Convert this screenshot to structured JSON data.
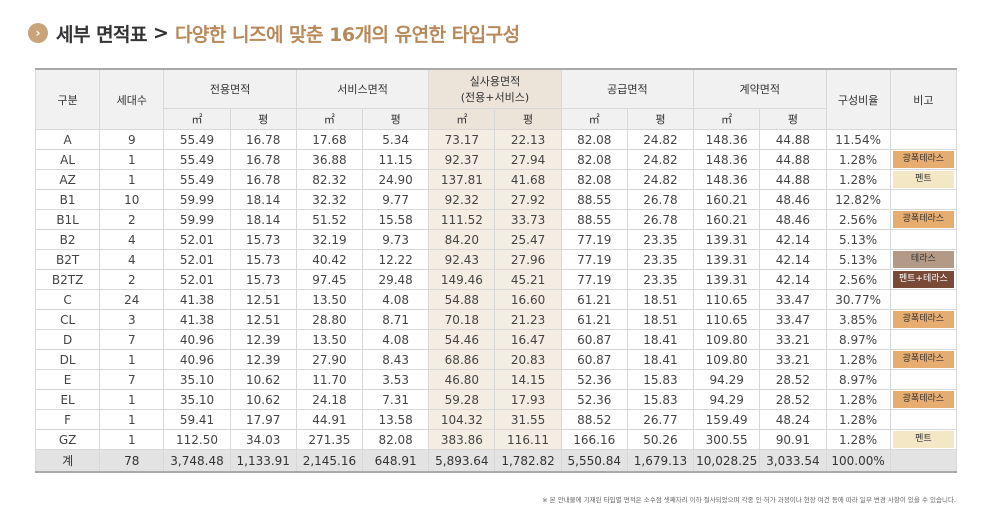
{
  "header": {
    "bullet": "›",
    "title_main": "세부 면적표",
    "separator": ">",
    "title_sub": "다양한 니즈에 맞춘 16개의 유연한 타입구성"
  },
  "table": {
    "headers": {
      "type": "구분",
      "units": "세대수",
      "exclusive": "전용면적",
      "service": "서비스면적",
      "actual_line1": "실사용면적",
      "actual_line2": "(전용+서비스)",
      "supply": "공급면적",
      "contract": "계약면적",
      "ratio": "구성비율",
      "note": "비고",
      "unit_sqm": "㎡",
      "unit_pyeong": "평"
    },
    "rows": [
      {
        "type": "A",
        "units": "9",
        "ex_m": "55.49",
        "ex_p": "16.78",
        "sv_m": "17.68",
        "sv_p": "5.34",
        "ac_m": "73.17",
        "ac_p": "22.13",
        "su_m": "82.08",
        "su_p": "24.82",
        "ct_m": "148.36",
        "ct_p": "44.88",
        "ratio": "11.54%",
        "note": ""
      },
      {
        "type": "AL",
        "units": "1",
        "ex_m": "55.49",
        "ex_p": "16.78",
        "sv_m": "36.88",
        "sv_p": "11.15",
        "ac_m": "92.37",
        "ac_p": "27.94",
        "su_m": "82.08",
        "su_p": "24.82",
        "ct_m": "148.36",
        "ct_p": "44.88",
        "ratio": "1.28%",
        "note": "광폭테라스"
      },
      {
        "type": "AZ",
        "units": "1",
        "ex_m": "55.49",
        "ex_p": "16.78",
        "sv_m": "82.32",
        "sv_p": "24.90",
        "ac_m": "137.81",
        "ac_p": "41.68",
        "su_m": "82.08",
        "su_p": "24.82",
        "ct_m": "148.36",
        "ct_p": "44.88",
        "ratio": "1.28%",
        "note": "펜트"
      },
      {
        "type": "B1",
        "units": "10",
        "ex_m": "59.99",
        "ex_p": "18.14",
        "sv_m": "32.32",
        "sv_p": "9.77",
        "ac_m": "92.32",
        "ac_p": "27.92",
        "su_m": "88.55",
        "su_p": "26.78",
        "ct_m": "160.21",
        "ct_p": "48.46",
        "ratio": "12.82%",
        "note": ""
      },
      {
        "type": "B1L",
        "units": "2",
        "ex_m": "59.99",
        "ex_p": "18.14",
        "sv_m": "51.52",
        "sv_p": "15.58",
        "ac_m": "111.52",
        "ac_p": "33.73",
        "su_m": "88.55",
        "su_p": "26.78",
        "ct_m": "160.21",
        "ct_p": "48.46",
        "ratio": "2.56%",
        "note": "광폭테라스"
      },
      {
        "type": "B2",
        "units": "4",
        "ex_m": "52.01",
        "ex_p": "15.73",
        "sv_m": "32.19",
        "sv_p": "9.73",
        "ac_m": "84.20",
        "ac_p": "25.47",
        "su_m": "77.19",
        "su_p": "23.35",
        "ct_m": "139.31",
        "ct_p": "42.14",
        "ratio": "5.13%",
        "note": ""
      },
      {
        "type": "B2T",
        "units": "4",
        "ex_m": "52.01",
        "ex_p": "15.73",
        "sv_m": "40.42",
        "sv_p": "12.22",
        "ac_m": "92.43",
        "ac_p": "27.96",
        "su_m": "77.19",
        "su_p": "23.35",
        "ct_m": "139.31",
        "ct_p": "42.14",
        "ratio": "5.13%",
        "note": "테라스"
      },
      {
        "type": "B2TZ",
        "units": "2",
        "ex_m": "52.01",
        "ex_p": "15.73",
        "sv_m": "97.45",
        "sv_p": "29.48",
        "ac_m": "149.46",
        "ac_p": "45.21",
        "su_m": "77.19",
        "su_p": "23.35",
        "ct_m": "139.31",
        "ct_p": "42.14",
        "ratio": "2.56%",
        "note": "펜트+테라스"
      },
      {
        "type": "C",
        "units": "24",
        "ex_m": "41.38",
        "ex_p": "12.51",
        "sv_m": "13.50",
        "sv_p": "4.08",
        "ac_m": "54.88",
        "ac_p": "16.60",
        "su_m": "61.21",
        "su_p": "18.51",
        "ct_m": "110.65",
        "ct_p": "33.47",
        "ratio": "30.77%",
        "note": ""
      },
      {
        "type": "CL",
        "units": "3",
        "ex_m": "41.38",
        "ex_p": "12.51",
        "sv_m": "28.80",
        "sv_p": "8.71",
        "ac_m": "70.18",
        "ac_p": "21.23",
        "su_m": "61.21",
        "su_p": "18.51",
        "ct_m": "110.65",
        "ct_p": "33.47",
        "ratio": "3.85%",
        "note": "광폭테라스"
      },
      {
        "type": "D",
        "units": "7",
        "ex_m": "40.96",
        "ex_p": "12.39",
        "sv_m": "13.50",
        "sv_p": "4.08",
        "ac_m": "54.46",
        "ac_p": "16.47",
        "su_m": "60.87",
        "su_p": "18.41",
        "ct_m": "109.80",
        "ct_p": "33.21",
        "ratio": "8.97%",
        "note": ""
      },
      {
        "type": "DL",
        "units": "1",
        "ex_m": "40.96",
        "ex_p": "12.39",
        "sv_m": "27.90",
        "sv_p": "8.43",
        "ac_m": "68.86",
        "ac_p": "20.83",
        "su_m": "60.87",
        "su_p": "18.41",
        "ct_m": "109.80",
        "ct_p": "33.21",
        "ratio": "1.28%",
        "note": "광폭테라스"
      },
      {
        "type": "E",
        "units": "7",
        "ex_m": "35.10",
        "ex_p": "10.62",
        "sv_m": "11.70",
        "sv_p": "3.53",
        "ac_m": "46.80",
        "ac_p": "14.15",
        "su_m": "52.36",
        "su_p": "15.83",
        "ct_m": "94.29",
        "ct_p": "28.52",
        "ratio": "8.97%",
        "note": ""
      },
      {
        "type": "EL",
        "units": "1",
        "ex_m": "35.10",
        "ex_p": "10.62",
        "sv_m": "24.18",
        "sv_p": "7.31",
        "ac_m": "59.28",
        "ac_p": "17.93",
        "su_m": "52.36",
        "su_p": "15.83",
        "ct_m": "94.29",
        "ct_p": "28.52",
        "ratio": "1.28%",
        "note": "광폭테라스"
      },
      {
        "type": "F",
        "units": "1",
        "ex_m": "59.41",
        "ex_p": "17.97",
        "sv_m": "44.91",
        "sv_p": "13.58",
        "ac_m": "104.32",
        "ac_p": "31.55",
        "su_m": "88.52",
        "su_p": "26.77",
        "ct_m": "159.49",
        "ct_p": "48.24",
        "ratio": "1.28%",
        "note": ""
      },
      {
        "type": "GZ",
        "units": "1",
        "ex_m": "112.50",
        "ex_p": "34.03",
        "sv_m": "271.35",
        "sv_p": "82.08",
        "ac_m": "383.86",
        "ac_p": "116.11",
        "su_m": "166.16",
        "su_p": "50.26",
        "ct_m": "300.55",
        "ct_p": "90.91",
        "ratio": "1.28%",
        "note": "펜트"
      }
    ],
    "total": {
      "type": "계",
      "units": "78",
      "ex_m": "3,748.48",
      "ex_p": "1,133.91",
      "sv_m": "2,145.16",
      "sv_p": "648.91",
      "ac_m": "5,893.64",
      "ac_p": "1,782.82",
      "su_m": "5,550.84",
      "su_p": "1,679.13",
      "ct_m": "10,028.25",
      "ct_p": "3,033.54",
      "ratio": "100.00%",
      "note": ""
    }
  },
  "note_colors": {
    "광폭테라스": "#e7ad70",
    "펜트": "#f4e7c5",
    "테라스": "#b39a86",
    "펜트+테라스": "#7a4a38"
  },
  "footnote": "※ 본 안내물에 기재된 타입별 면적은 소수점 셋째자리 이하 절사되었으며 각종 인·허가 과정이나 현장 여건 등에 따라 일부 변경 사항이 있을 수 있습니다."
}
